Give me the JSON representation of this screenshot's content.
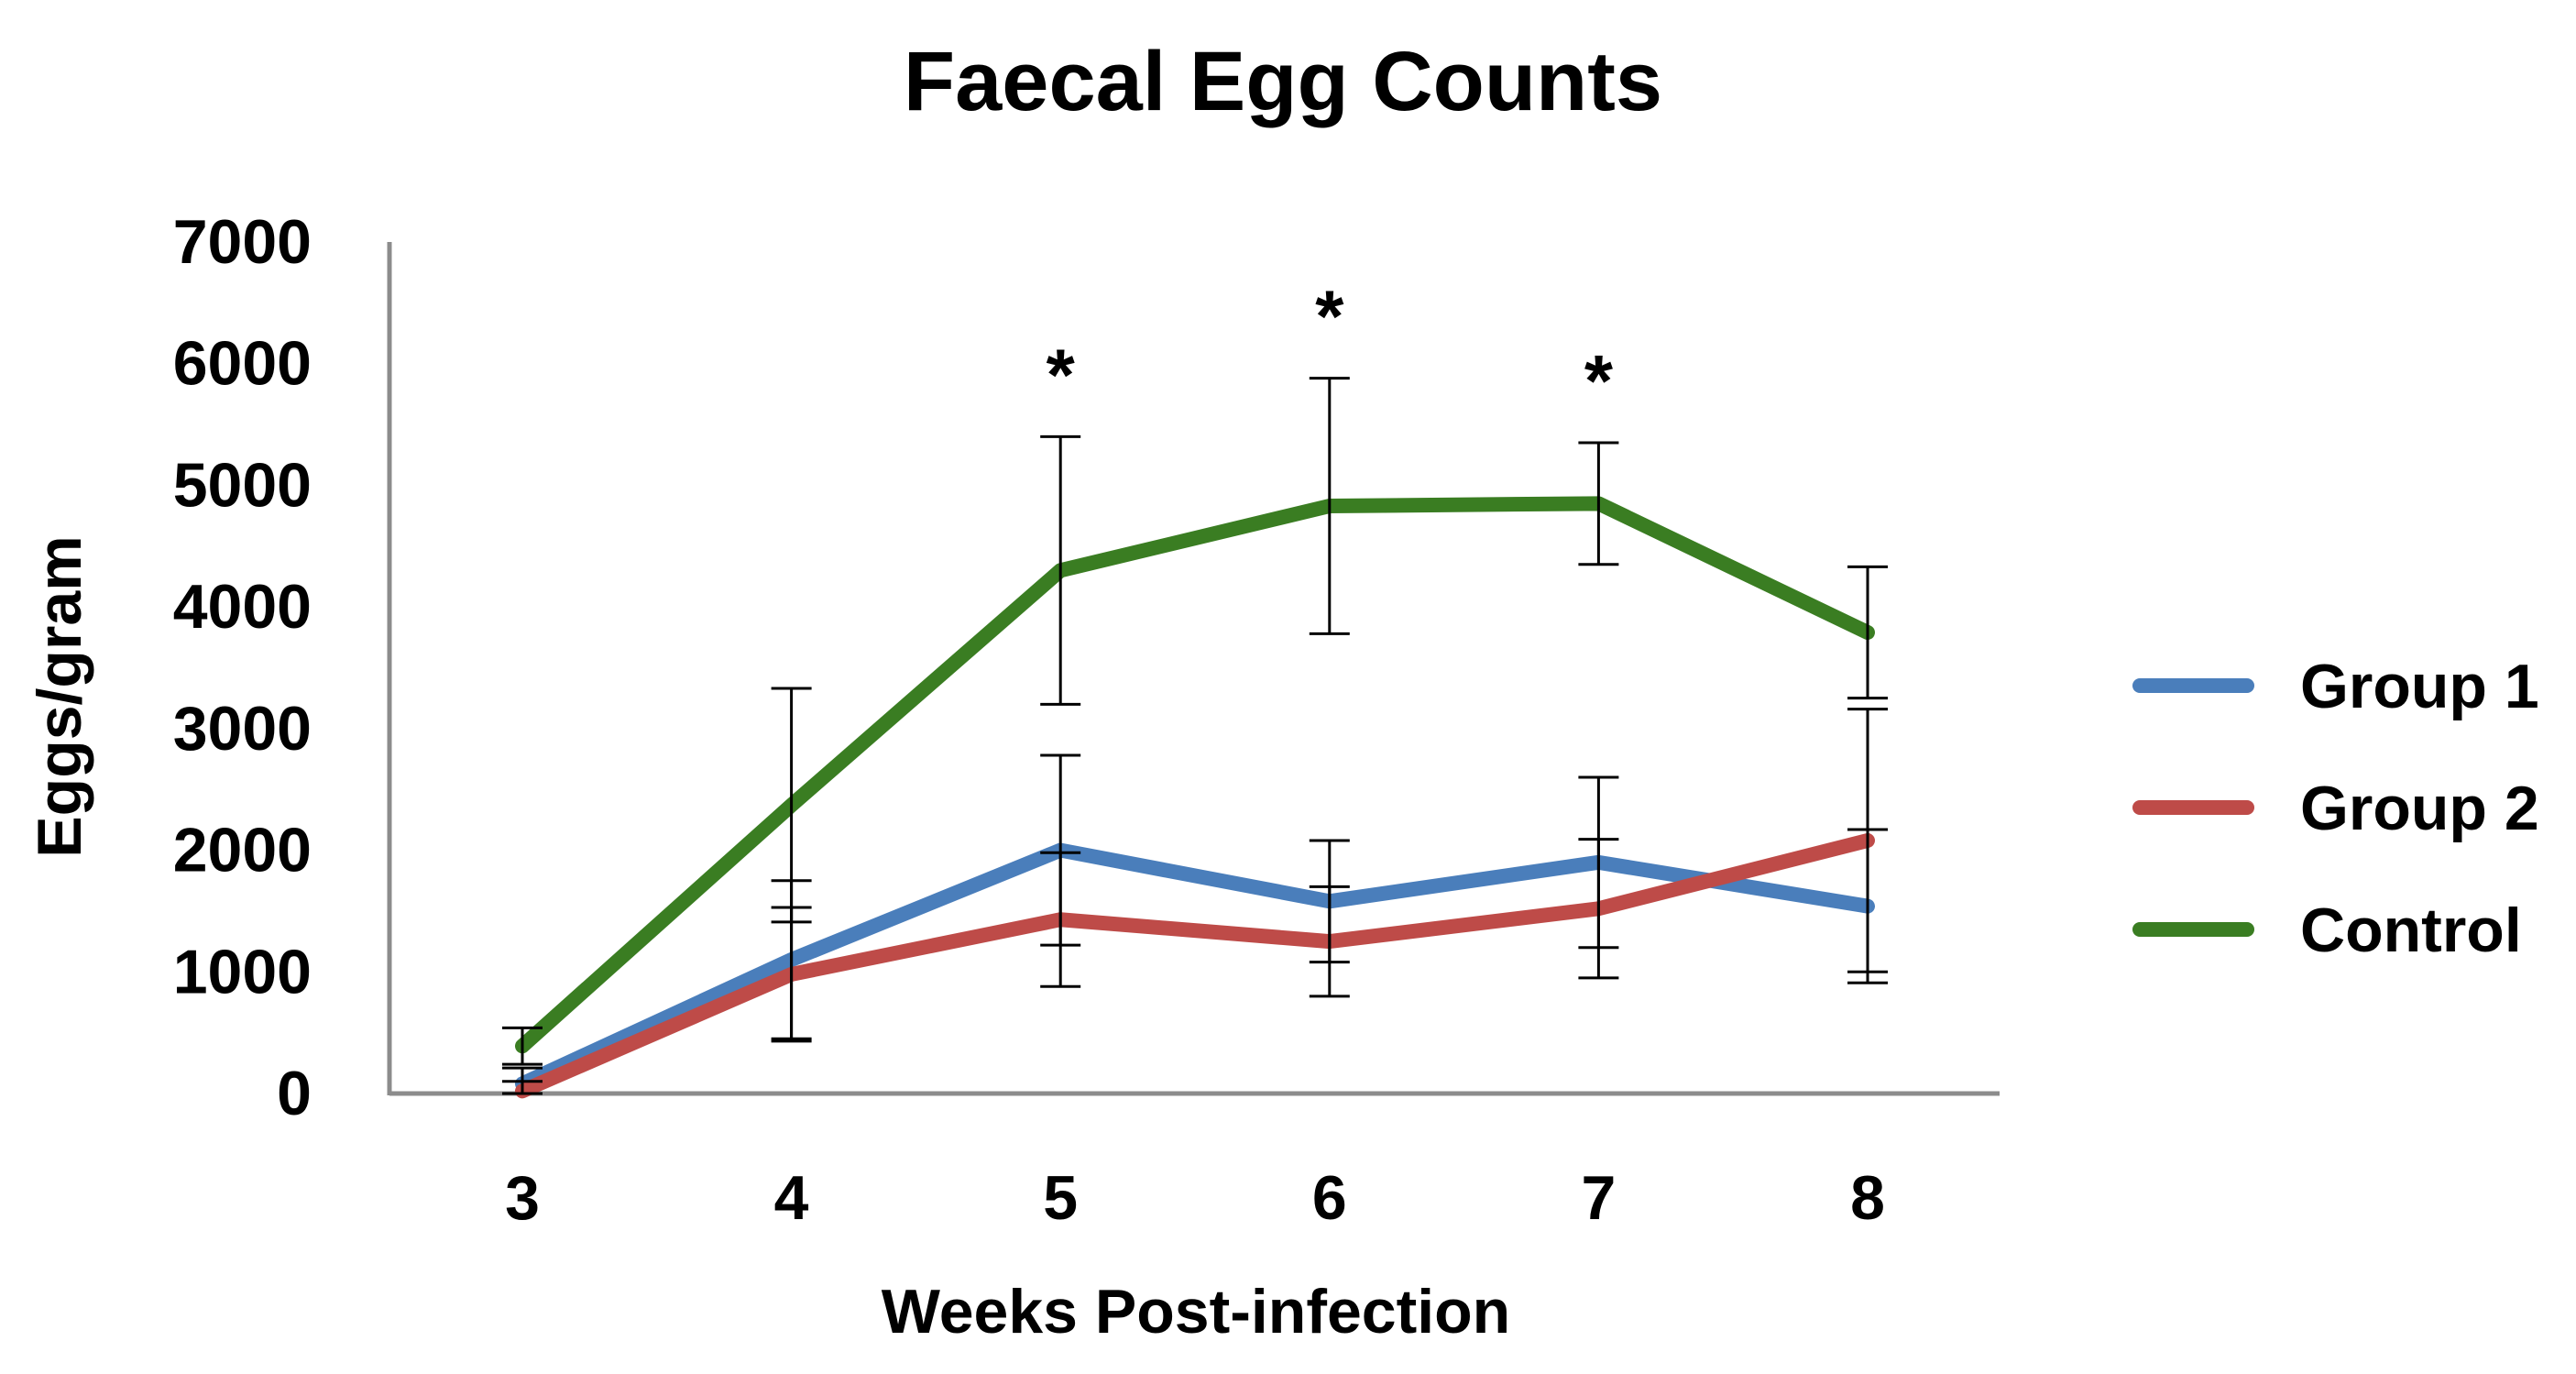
{
  "chart_data": {
    "type": "line",
    "title": "Faecal Egg Counts",
    "xlabel": "Weeks Post-infection",
    "ylabel": "Eggs/gram",
    "categories": [
      "3",
      "4",
      "5",
      "6",
      "7",
      "8"
    ],
    "ylim": [
      0,
      7000
    ],
    "yticks": [
      0,
      1000,
      2000,
      3000,
      4000,
      5000,
      6000,
      7000
    ],
    "grid": false,
    "legend_position": "right",
    "series": [
      {
        "name": "Group 1",
        "color": "#4A7EBB",
        "values": [
          80,
          1100,
          2000,
          1580,
          1900,
          1540
        ],
        "error": [
          130,
          650,
          780,
          500,
          700,
          630
        ]
      },
      {
        "name": "Group 2",
        "color": "#BE4B48",
        "values": [
          20,
          980,
          1430,
          1250,
          1520,
          2080
        ],
        "error": [
          80,
          550,
          550,
          450,
          570,
          1080
        ]
      },
      {
        "name": "Control",
        "color": "#3A7D22",
        "values": [
          390,
          2370,
          4300,
          4830,
          4850,
          3790
        ],
        "error": [
          150,
          960,
          1100,
          1050,
          500,
          540
        ]
      }
    ],
    "annotations": [
      {
        "category": "5",
        "text": "*"
      },
      {
        "category": "6",
        "text": "*"
      },
      {
        "category": "7",
        "text": "*"
      }
    ]
  }
}
